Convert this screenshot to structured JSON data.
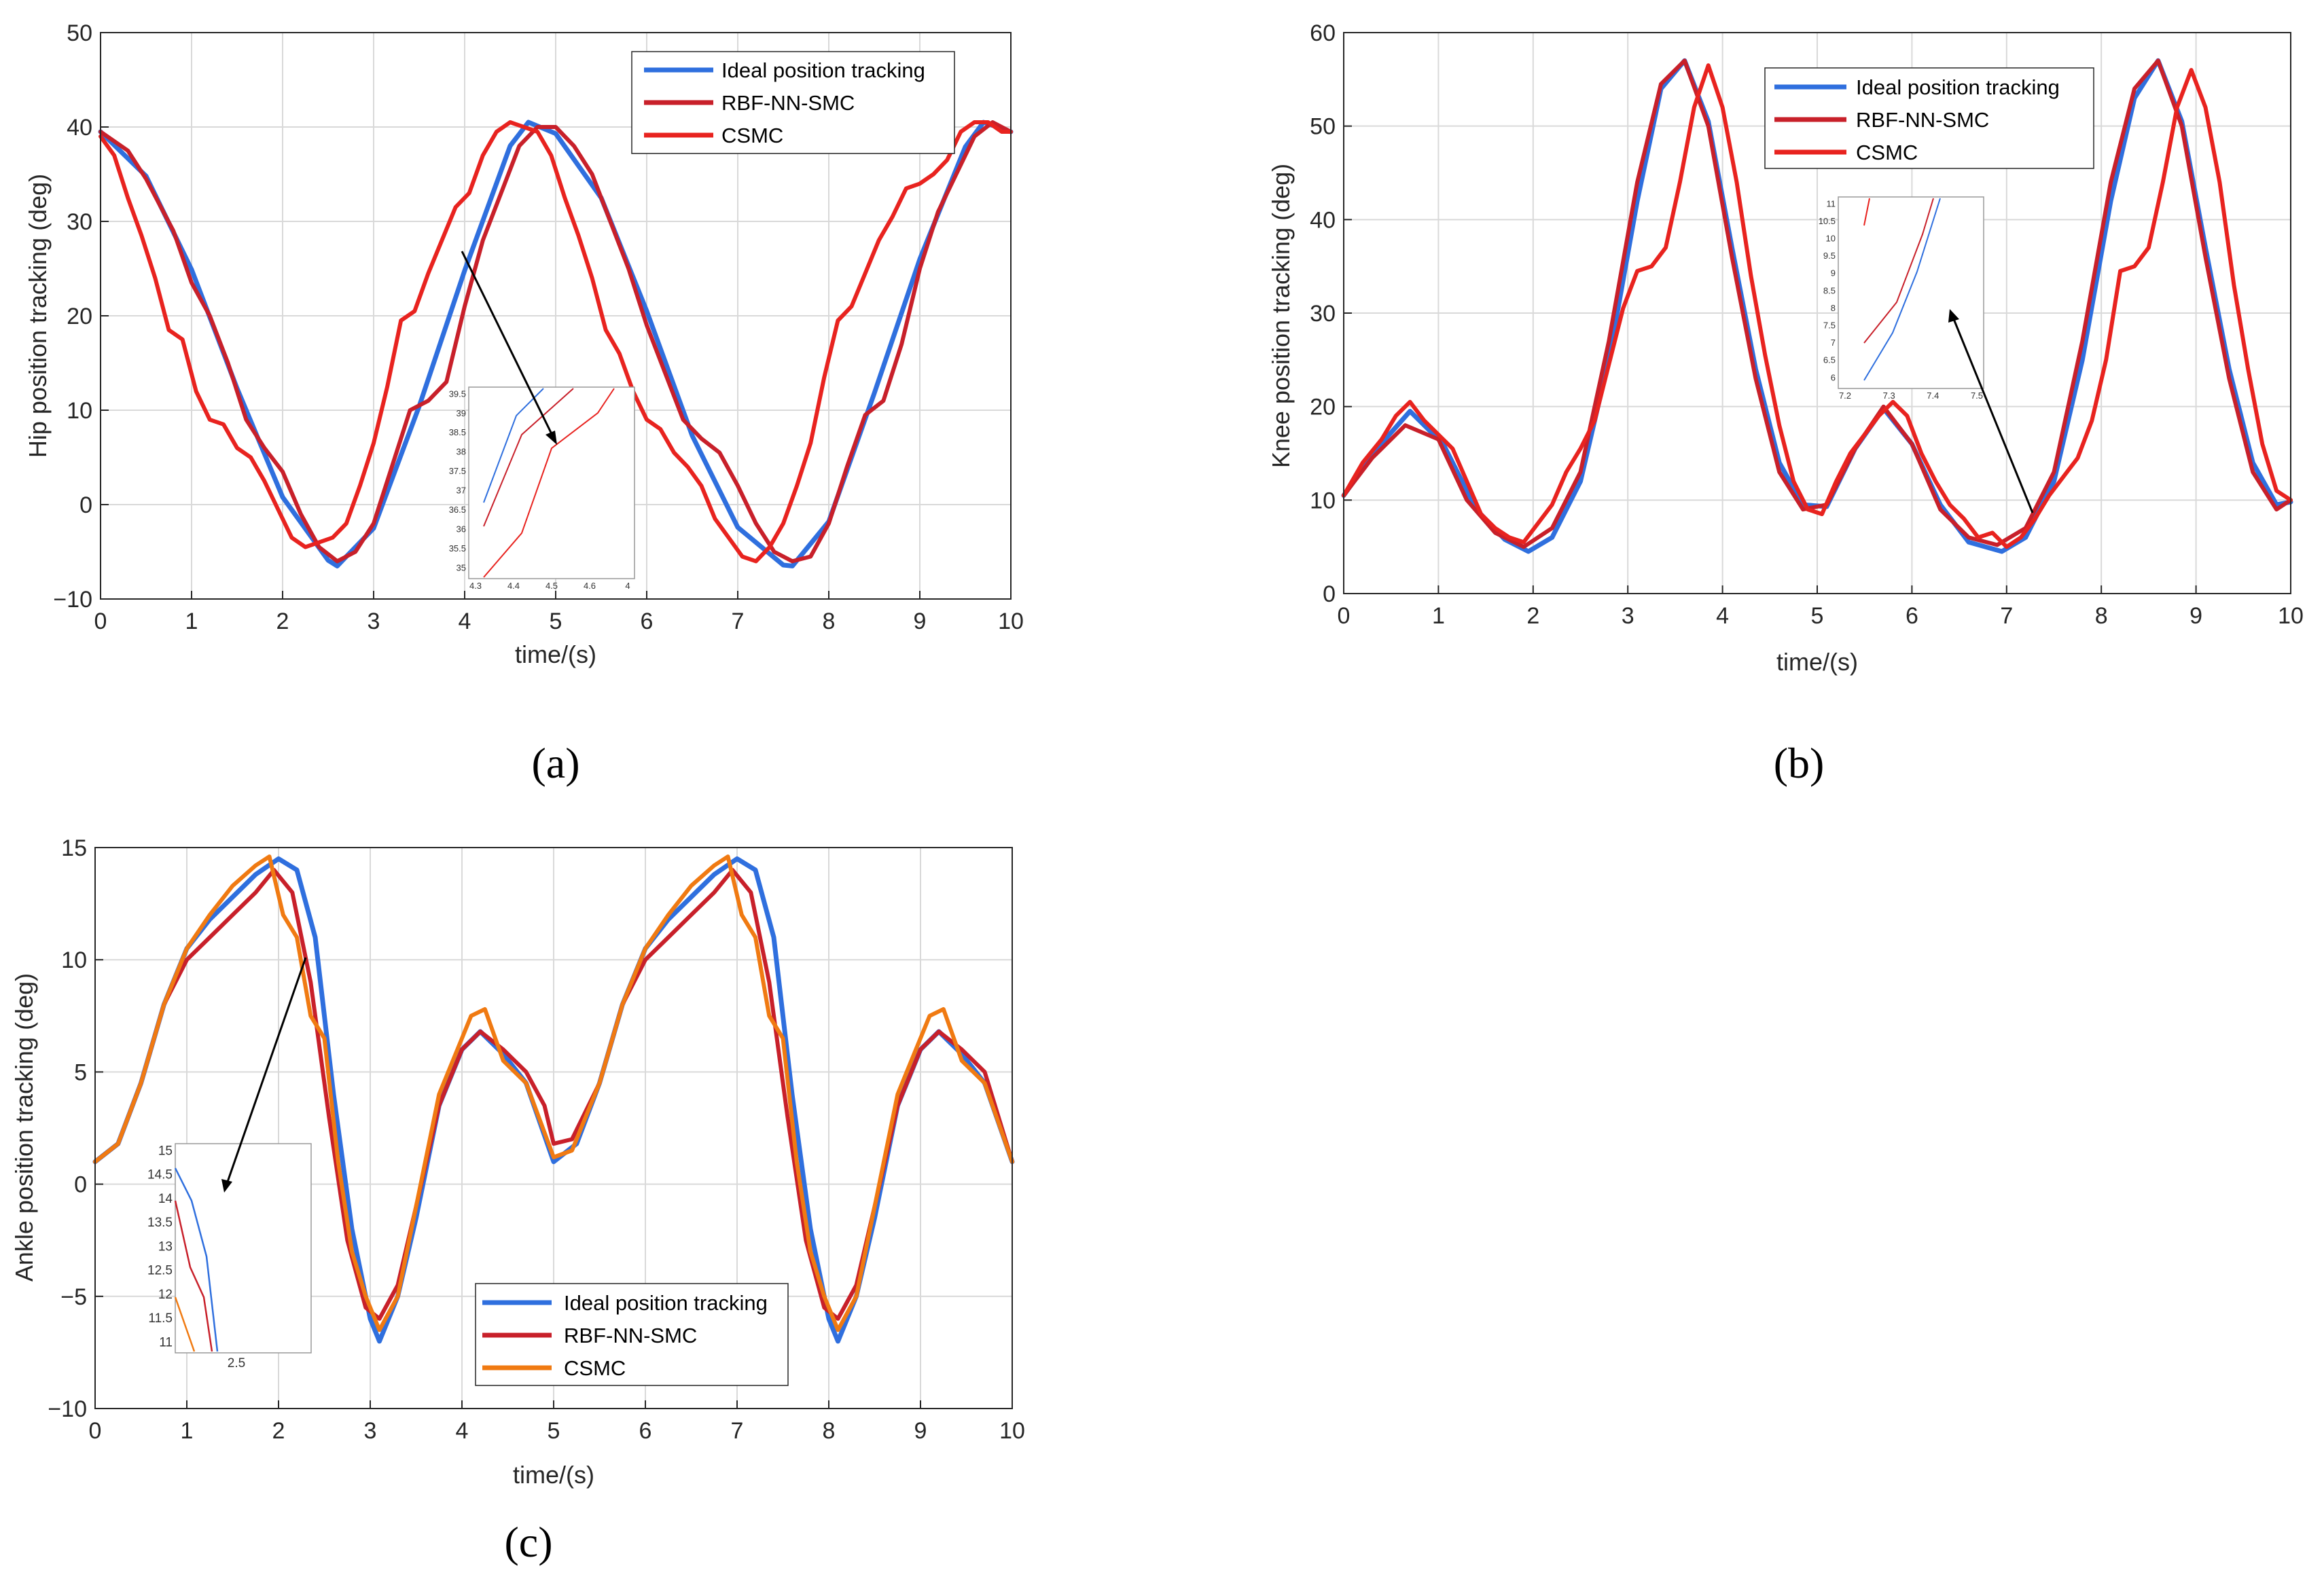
{
  "colors": {
    "ideal": "#2f6fde",
    "rbf": "#c8202a",
    "csmc_ab": "#e8231f",
    "csmc_c": "#f07a12",
    "grid": "#d9d9d9",
    "axis": "#262626"
  },
  "chart_data": [
    {
      "id": "a",
      "panel_label": "(a)",
      "type": "line",
      "title": "",
      "xlabel": "time/(s)",
      "ylabel": "Hip position tracking (deg)",
      "xlim": [
        0,
        10
      ],
      "ylim": [
        -10,
        50
      ],
      "xticks": [
        "0",
        "1",
        "2",
        "3",
        "4",
        "5",
        "6",
        "7",
        "8",
        "9",
        "10"
      ],
      "yticks": [
        "-10",
        "0",
        "10",
        "20",
        "30",
        "40",
        "50"
      ],
      "grid": true,
      "legend": {
        "position": "top-right",
        "entries": [
          "Ideal position tracking",
          "RBF-NN-SMC",
          "CSMC"
        ]
      },
      "series": [
        {
          "name": "Ideal position tracking",
          "color_key": "ideal",
          "x": [
            0,
            0.5,
            1,
            1.5,
            2,
            2.5,
            2.6,
            3,
            3.5,
            4,
            4.5,
            4.7,
            5,
            5.5,
            6,
            6.5,
            7,
            7.5,
            7.6,
            8,
            8.5,
            9,
            9.5,
            9.7,
            10
          ],
          "y": [
            39.5,
            34.8,
            24.9,
            12.3,
            0.8,
            -5.9,
            -6.5,
            -2.5,
            10.4,
            24.8,
            38,
            40.5,
            39.3,
            32.5,
            20.5,
            7.3,
            -2.4,
            -6.4,
            -6.5,
            -1.8,
            11.8,
            26,
            37.9,
            40.5,
            39.5
          ]
        },
        {
          "name": "RBF-NN-SMC",
          "color_key": "rbf",
          "x": [
            0,
            0.3,
            0.5,
            0.8,
            1,
            1.2,
            1.4,
            1.6,
            1.8,
            2,
            2.2,
            2.4,
            2.6,
            2.8,
            3,
            3.2,
            3.4,
            3.6,
            3.8,
            4,
            4.2,
            4.4,
            4.6,
            4.8,
            5,
            5.2,
            5.4,
            5.6,
            5.8,
            6,
            6.2,
            6.4,
            6.6,
            6.8,
            7,
            7.2,
            7.4,
            7.6,
            7.8,
            8,
            8.2,
            8.4,
            8.6,
            8.8,
            9,
            9.2,
            9.4,
            9.6,
            9.8,
            10
          ],
          "y": [
            39.5,
            37.5,
            34.5,
            29,
            23.5,
            20,
            15,
            9,
            6,
            3.5,
            -1,
            -4.5,
            -6,
            -5,
            -2,
            4,
            10,
            11,
            13,
            21,
            28,
            33,
            38,
            40,
            40,
            38,
            35,
            30,
            25,
            19,
            14,
            9,
            7,
            5.5,
            2,
            -2,
            -5,
            -6,
            -5.5,
            -2,
            4,
            9.5,
            11,
            17,
            25,
            31,
            35,
            39,
            40.5,
            39.5
          ]
        },
        {
          "name": "CSMC",
          "color_key": "csmc_ab",
          "x": [
            0,
            0.15,
            0.3,
            0.45,
            0.6,
            0.75,
            0.9,
            1.05,
            1.2,
            1.35,
            1.5,
            1.65,
            1.8,
            1.95,
            2.1,
            2.25,
            2.4,
            2.55,
            2.7,
            2.85,
            3,
            3.15,
            3.3,
            3.45,
            3.6,
            3.75,
            3.9,
            4.05,
            4.2,
            4.35,
            4.5,
            4.65,
            4.8,
            4.95,
            5.1,
            5.25,
            5.4,
            5.55,
            5.7,
            5.85,
            6,
            6.15,
            6.3,
            6.45,
            6.6,
            6.75,
            6.9,
            7.05,
            7.2,
            7.35,
            7.5,
            7.65,
            7.8,
            7.95,
            8.1,
            8.25,
            8.4,
            8.55,
            8.7,
            8.85,
            9,
            9.15,
            9.3,
            9.45,
            9.6,
            9.75,
            9.9,
            10
          ],
          "y": [
            39,
            37,
            32.5,
            28.5,
            24,
            18.5,
            17.5,
            12,
            9,
            8.5,
            6,
            5,
            2.5,
            -0.5,
            -3.5,
            -4.5,
            -4,
            -3.5,
            -2,
            2,
            6.5,
            12.5,
            19.5,
            20.5,
            24.5,
            28,
            31.5,
            33,
            37,
            39.5,
            40.5,
            40,
            39.5,
            37,
            32.5,
            28.5,
            24,
            18.5,
            16,
            12,
            9,
            8,
            5.5,
            4,
            2,
            -1.5,
            -3.5,
            -5.5,
            -6,
            -4.5,
            -2,
            2,
            6.5,
            13.5,
            19.5,
            21,
            24.5,
            28,
            30.5,
            33.5,
            34,
            35,
            36.5,
            39.5,
            40.5,
            40.5,
            39.5,
            39.5
          ]
        }
      ],
      "annotation": "zoom-inset",
      "inset": {
        "xticks": [
          "4.3",
          "4.4",
          "4.5",
          "4.6",
          "4"
        ],
        "yticks": [
          "39.5",
          "39",
          "38.5",
          "38",
          "37.5",
          "37",
          "36.5",
          "36",
          "35.5",
          "35"
        ]
      }
    },
    {
      "id": "b",
      "panel_label": "(b)",
      "type": "line",
      "title": "",
      "xlabel": "time/(s)",
      "ylabel": "Knee position tracking (deg)",
      "xlim": [
        0,
        10
      ],
      "ylim": [
        0,
        60
      ],
      "xticks": [
        "0",
        "1",
        "2",
        "3",
        "4",
        "5",
        "6",
        "7",
        "8",
        "9",
        "10"
      ],
      "yticks": [
        "0",
        "10",
        "20",
        "30",
        "40",
        "50",
        "60"
      ],
      "grid": true,
      "legend": {
        "position": "top-right",
        "entries": [
          "Ideal position tracking",
          "RBF-NN-SMC",
          "CSMC"
        ]
      },
      "series": [
        {
          "name": "Ideal position tracking",
          "color_key": "ideal",
          "x": [
            0,
            0.35,
            0.7,
            1.05,
            1.4,
            1.7,
            1.95,
            2.2,
            2.5,
            2.8,
            3.1,
            3.35,
            3.6,
            3.85,
            4.1,
            4.35,
            4.6,
            4.85,
            5.1,
            5.4,
            5.7,
            6,
            6.3,
            6.6,
            6.95,
            7.2,
            7.5,
            7.8,
            8.1,
            8.35,
            8.6,
            8.85,
            9.1,
            9.35,
            9.6,
            9.85,
            10
          ],
          "y": [
            10.5,
            15.5,
            19.5,
            16,
            9,
            5.8,
            4.5,
            6,
            12,
            25,
            42,
            54,
            57,
            50.5,
            37,
            24,
            14,
            9.5,
            9.3,
            15.5,
            19.8,
            16,
            9.5,
            5.5,
            4.5,
            6,
            12,
            25,
            42,
            53,
            57,
            50.5,
            37,
            24,
            14,
            9.5,
            9.8
          ]
        },
        {
          "name": "RBF-NN-SMC",
          "color_key": "rbf",
          "x": [
            0,
            0.3,
            0.65,
            1,
            1.3,
            1.6,
            1.9,
            2.2,
            2.5,
            2.8,
            3.1,
            3.35,
            3.6,
            3.85,
            4.1,
            4.35,
            4.6,
            4.85,
            5.1,
            5.4,
            5.7,
            6,
            6.3,
            6.6,
            6.9,
            7.2,
            7.5,
            7.8,
            8.1,
            8.35,
            8.6,
            8.85,
            9.1,
            9.35,
            9.6,
            9.85,
            10
          ],
          "y": [
            10.5,
            14.5,
            18,
            16.5,
            10,
            6.5,
            5,
            7,
            13,
            27,
            44,
            54.5,
            57,
            50,
            36,
            23,
            13,
            9,
            9.5,
            15.5,
            20,
            16,
            9,
            6,
            5.2,
            7,
            13,
            27,
            44,
            54,
            57,
            50,
            36,
            23,
            13,
            9,
            10
          ]
        },
        {
          "name": "CSMC",
          "color_key": "csmc_ab",
          "x": [
            0,
            0.2,
            0.4,
            0.55,
            0.7,
            0.85,
            1,
            1.15,
            1.3,
            1.45,
            1.6,
            1.75,
            1.9,
            2.05,
            2.2,
            2.35,
            2.5,
            2.65,
            2.8,
            2.95,
            3.1,
            3.25,
            3.4,
            3.55,
            3.7,
            3.85,
            4,
            4.15,
            4.3,
            4.45,
            4.6,
            4.75,
            4.9,
            5.05,
            5.2,
            5.35,
            5.5,
            5.65,
            5.8,
            5.95,
            6.1,
            6.25,
            6.4,
            6.55,
            6.7,
            6.85,
            7,
            7.15,
            7.3,
            7.45,
            7.6,
            7.75,
            7.9,
            8.05,
            8.2,
            8.35,
            8.5,
            8.65,
            8.8,
            8.95,
            9.1,
            9.25,
            9.4,
            9.55,
            9.7,
            9.85,
            10
          ],
          "y": [
            10.5,
            14,
            16.5,
            19,
            20.5,
            18.5,
            17,
            15.5,
            12,
            8.5,
            7,
            6,
            5.5,
            7.5,
            9.5,
            13,
            15.5,
            18.5,
            24.5,
            30.5,
            34.5,
            35,
            37,
            44,
            52,
            56.5,
            52,
            44,
            34,
            25.5,
            18,
            12,
            9,
            8.5,
            12,
            15,
            17,
            19,
            20.5,
            19,
            15,
            12,
            9.5,
            8,
            6,
            6.5,
            5,
            6,
            8,
            10.5,
            12.5,
            14.5,
            18.5,
            25,
            34.5,
            35,
            37,
            44,
            52,
            56,
            52,
            44,
            33,
            24,
            16,
            11,
            10
          ]
        }
      ],
      "annotation": "zoom-inset",
      "inset": {
        "xticks": [
          "7.2",
          "7.3",
          "7.4",
          "7.5"
        ],
        "yticks": [
          "11",
          "10.5",
          "10",
          "9.5",
          "9",
          "8.5",
          "8",
          "7.5",
          "7",
          "6.5",
          "6"
        ]
      }
    },
    {
      "id": "c",
      "panel_label": "(c)",
      "type": "line",
      "title": "",
      "xlabel": "time/(s)",
      "ylabel": "Ankle position tracking (deg)",
      "xlim": [
        0,
        10
      ],
      "ylim": [
        -10,
        15
      ],
      "xticks": [
        "0",
        "1",
        "2",
        "3",
        "4",
        "5",
        "6",
        "7",
        "8",
        "9",
        "10"
      ],
      "yticks": [
        "-10",
        "-5",
        "0",
        "5",
        "10",
        "15"
      ],
      "grid": true,
      "legend": {
        "position": "bottom-right",
        "entries": [
          "Ideal position tracking",
          "RBF-NN-SMC",
          "CSMC"
        ]
      },
      "series": [
        {
          "name": "Ideal position tracking",
          "color_key": "ideal",
          "x": [
            0,
            0.25,
            0.5,
            0.75,
            1,
            1.25,
            1.5,
            1.75,
            2,
            2.2,
            2.4,
            2.6,
            2.8,
            3,
            3.1,
            3.3,
            3.5,
            3.75,
            4,
            4.2,
            4.45,
            4.7,
            5,
            5.25,
            5.5,
            5.75,
            6,
            6.25,
            6.5,
            6.75,
            7,
            7.2,
            7.4,
            7.6,
            7.8,
            8,
            8.1,
            8.3,
            8.5,
            8.75,
            9,
            9.2,
            9.45,
            9.7,
            10
          ],
          "y": [
            1,
            1.8,
            4.5,
            8,
            10.5,
            11.8,
            12.8,
            13.8,
            14.5,
            14,
            11,
            4,
            -2,
            -6,
            -7,
            -5,
            -1.5,
            3.5,
            6,
            6.8,
            5.8,
            4.5,
            1,
            1.8,
            4.5,
            8,
            10.5,
            11.8,
            12.8,
            13.8,
            14.5,
            14,
            11,
            4,
            -2,
            -6,
            -7,
            -5,
            -1.5,
            3.5,
            6,
            6.8,
            5.8,
            4.5,
            1
          ]
        },
        {
          "name": "RBF-NN-SMC",
          "color_key": "rbf",
          "x": [
            0,
            0.25,
            0.5,
            0.75,
            1,
            1.25,
            1.5,
            1.75,
            1.95,
            2.15,
            2.35,
            2.55,
            2.75,
            2.95,
            3.1,
            3.3,
            3.5,
            3.75,
            4,
            4.2,
            4.45,
            4.7,
            4.9,
            5,
            5.2,
            5.5,
            5.75,
            6,
            6.25,
            6.5,
            6.75,
            6.95,
            7.15,
            7.35,
            7.55,
            7.75,
            7.95,
            8.1,
            8.3,
            8.5,
            8.75,
            9,
            9.2,
            9.45,
            9.7,
            10
          ],
          "y": [
            1,
            1.8,
            4.5,
            8,
            10,
            11,
            12,
            13,
            14,
            13,
            9,
            3,
            -2.5,
            -5.5,
            -6,
            -4.5,
            -1,
            3.5,
            6,
            6.8,
            6,
            5,
            3.5,
            1.8,
            2,
            4.5,
            8,
            10,
            11,
            12,
            13,
            14,
            13,
            9,
            3,
            -2.5,
            -5.5,
            -6,
            -4.5,
            -1,
            3.5,
            6,
            6.8,
            6,
            5,
            1
          ]
        },
        {
          "name": "CSMC",
          "color_key": "csmc_c",
          "x": [
            0,
            0.25,
            0.5,
            0.75,
            1,
            1.25,
            1.5,
            1.75,
            1.9,
            2.05,
            2.2,
            2.35,
            2.5,
            2.65,
            2.8,
            2.95,
            3.1,
            3.3,
            3.5,
            3.75,
            3.95,
            4.1,
            4.25,
            4.45,
            4.7,
            5,
            5.2,
            5.5,
            5.75,
            6,
            6.25,
            6.5,
            6.75,
            6.9,
            7.05,
            7.2,
            7.35,
            7.5,
            7.65,
            7.8,
            7.95,
            8.1,
            8.3,
            8.5,
            8.75,
            8.95,
            9.1,
            9.25,
            9.45,
            9.7,
            10
          ],
          "y": [
            1,
            1.8,
            4.5,
            8,
            10.5,
            12,
            13.3,
            14.2,
            14.6,
            12,
            11,
            7.5,
            6.5,
            1,
            -3,
            -5,
            -6.5,
            -5,
            -1,
            4,
            6,
            7.5,
            7.8,
            5.5,
            4.5,
            1.2,
            1.5,
            4.5,
            8,
            10.5,
            12,
            13.3,
            14.2,
            14.6,
            12,
            11,
            7.5,
            6.5,
            1,
            -3,
            -5,
            -6.5,
            -5,
            -1,
            4,
            6,
            7.5,
            7.8,
            5.5,
            4.5,
            1
          ]
        }
      ],
      "annotation": "zoom-inset",
      "inset": {
        "xticks": [
          "2.5"
        ],
        "yticks": [
          "15",
          "14.5",
          "14",
          "13.5",
          "13",
          "12.5",
          "12",
          "11.5",
          "11"
        ]
      }
    }
  ]
}
